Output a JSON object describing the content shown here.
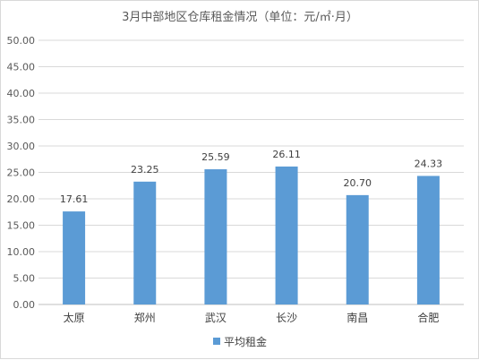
{
  "chart_data": {
    "type": "bar",
    "title": "3月中部地区仓库租金情况（单位：元/㎡·月）",
    "categories": [
      "太原",
      "郑州",
      "武汉",
      "长沙",
      "南昌",
      "合肥"
    ],
    "series": [
      {
        "name": "平均租金",
        "values": [
          17.61,
          23.25,
          25.59,
          26.11,
          20.7,
          24.33
        ],
        "labels": [
          "17.61",
          "23.25",
          "25.59",
          "26.11",
          "20.70",
          "24.33"
        ],
        "color": "#5b9bd5"
      }
    ],
    "ylim": [
      0,
      50
    ],
    "yticks": [
      "0.00",
      "5.00",
      "10.00",
      "15.00",
      "20.00",
      "25.00",
      "30.00",
      "35.00",
      "40.00",
      "45.00",
      "50.00"
    ],
    "grid": true,
    "legend": "bottom"
  }
}
